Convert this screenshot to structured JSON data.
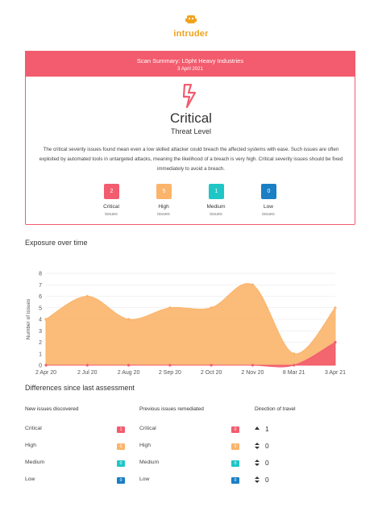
{
  "header": {
    "logo": "intruder"
  },
  "summary": {
    "title": "Scan Summary: L0pht Heavy Industries",
    "date": "3 April 2021",
    "level": "Critical",
    "level_label": "Threat Level",
    "description": "The critical severity issues found mean even a low skilled attacker could breach the affected systems with ease. Such issues are often exploited by automated tools in untargeted attacks, meaning the likelihood of a breach is very high. Critical severity issues should be fixed immediately to avoid a breach.",
    "counts": [
      {
        "value": 2,
        "label": "Critical",
        "sub": "issues",
        "color": "#f25c6e"
      },
      {
        "value": 5,
        "label": "High",
        "sub": "issues",
        "color": "#fbb46a"
      },
      {
        "value": 1,
        "label": "Medium",
        "sub": "issues",
        "color": "#1fc6c6"
      },
      {
        "value": 0,
        "label": "Low",
        "sub": "issues",
        "color": "#1a7fc4"
      }
    ]
  },
  "chart_data": {
    "type": "area",
    "title": "Exposure over time",
    "y_label": "Number of issues",
    "categories": [
      "2 Apr 20",
      "2 Jul 20",
      "2 Aug 20",
      "2 Sep 20",
      "2 Oct 20",
      "2 Nov 20",
      "8 Mar 21",
      "3 Apr 21"
    ],
    "series": [
      {
        "color": "#fbb46a",
        "values": [
          4,
          6,
          4,
          5,
          5,
          7,
          1,
          5
        ]
      },
      {
        "color": "#f25c6e",
        "values": [
          0,
          0,
          0,
          0,
          0,
          0,
          0,
          2
        ]
      }
    ],
    "ylim": [
      0,
      8
    ],
    "yticks": [
      0,
      1,
      2,
      3,
      4,
      5,
      6,
      7,
      8
    ],
    "grid": true
  },
  "differences": {
    "title": "Differences since last assessment",
    "columns": [
      "New issues discovered",
      "Previous issues remediated",
      "Direction of travel"
    ],
    "rows": [
      {
        "new_label": "Critical",
        "new": 1,
        "rem_label": "Critical",
        "rem": 0,
        "direction": 1,
        "trend": "up",
        "color": "#f25c6e"
      },
      {
        "new_label": "High",
        "new": 0,
        "rem_label": "High",
        "rem": 0,
        "direction": 0,
        "trend": "flat",
        "color": "#fbb46a"
      },
      {
        "new_label": "Medium",
        "new": 0,
        "rem_label": "Medium",
        "rem": 0,
        "direction": 0,
        "trend": "flat",
        "color": "#1fc6c6"
      },
      {
        "new_label": "Low",
        "new": 0,
        "rem_label": "Low",
        "rem": 0,
        "direction": 0,
        "trend": "flat",
        "color": "#1a7fc4"
      }
    ]
  }
}
